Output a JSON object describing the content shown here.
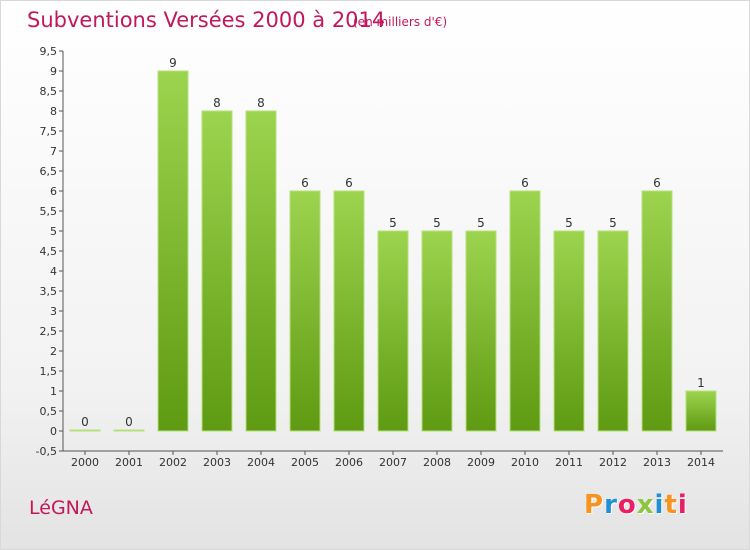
{
  "title": "Subventions Versées 2000 à 2014",
  "unit_note": "(en milliers d'€)",
  "commune": "LéGNA",
  "logo": {
    "text": "Proxiti",
    "colors": [
      "#f7931e",
      "#1f8fd6",
      "#e91e63",
      "#8cc63f",
      "#1f8fd6",
      "#f7931e",
      "#e91e63"
    ]
  },
  "colors": {
    "bar_top": "#9dd44f",
    "bar_bottom": "#5e9a12",
    "title": "#c2185b"
  },
  "chart_data": {
    "type": "bar",
    "title": "Subventions Versées 2000 à 2014",
    "categories": [
      "2000",
      "2001",
      "2002",
      "2003",
      "2004",
      "2005",
      "2006",
      "2007",
      "2008",
      "2009",
      "2010",
      "2011",
      "2012",
      "2013",
      "2014"
    ],
    "values": [
      0,
      0,
      9,
      8,
      8,
      6,
      6,
      5,
      5,
      5,
      6,
      5,
      5,
      6,
      1
    ],
    "ylim": [
      -0.5,
      9.5
    ],
    "yticks": [
      "-0,5",
      "0",
      "0,5",
      "1",
      "1,5",
      "2",
      "2,5",
      "3",
      "3,5",
      "4",
      "4,5",
      "5",
      "5,5",
      "6",
      "6,5",
      "7",
      "7,5",
      "8",
      "8,5",
      "9",
      "9,5"
    ],
    "grid": false
  }
}
